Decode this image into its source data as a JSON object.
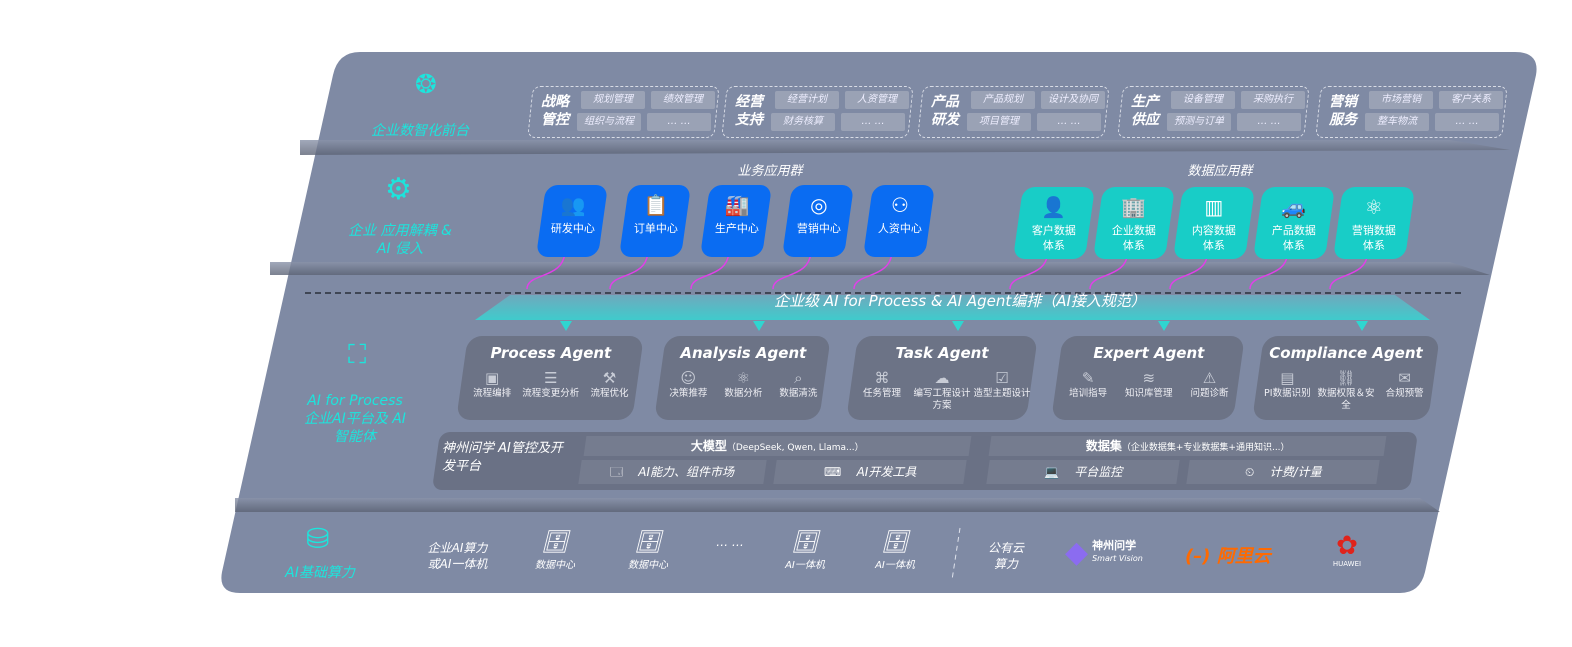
{
  "front": {
    "label": "企业数智化前台",
    "icon": "brain-icon",
    "groups": [
      {
        "title": "战略管控",
        "items": [
          "规划管理",
          "绩效管理",
          "组织与流程",
          "… …"
        ]
      },
      {
        "title": "经营支持",
        "items": [
          "经营计划",
          "人资管理",
          "财务核算",
          "… …"
        ]
      },
      {
        "title": "产品研发",
        "items": [
          "产品规划",
          "设计及协同",
          "项目管理",
          "… …"
        ]
      },
      {
        "title": "生产供应",
        "items": [
          "设备管理",
          "采购执行",
          "预测与订单",
          "… …"
        ]
      },
      {
        "title": "营销服务",
        "items": [
          "市场营销",
          "客户关系",
          "整车物流",
          "… …"
        ]
      }
    ]
  },
  "apps": {
    "label": "企业 应用解耦 & AI 侵入",
    "icon": "network-node-icon",
    "business_title": "业务应用群",
    "business": [
      {
        "label": "研发中心",
        "icon": "users-icon"
      },
      {
        "label": "订单中心",
        "icon": "clipboard-icon"
      },
      {
        "label": "生产中心",
        "icon": "factory-icon"
      },
      {
        "label": "营销中心",
        "icon": "target-icon"
      },
      {
        "label": "人资中心",
        "icon": "person-icon"
      }
    ],
    "data_title": "数据应用群",
    "data": [
      {
        "label": "客户数据体系",
        "icon": "user-icon"
      },
      {
        "label": "企业数据体系",
        "icon": "building-icon"
      },
      {
        "label": "内容数据体系",
        "icon": "books-icon"
      },
      {
        "label": "产品数据体系",
        "icon": "car-icon"
      },
      {
        "label": "营销数据体系",
        "icon": "atom-icon"
      }
    ],
    "colors": {
      "business": "#0a6cf2",
      "data": "#18cdc7",
      "connector": "#e040e8"
    }
  },
  "banner": "企业级 AI for Process & AI Agent编排（AI接入规范）",
  "platform": {
    "label": "AI for Process 企业AI平台及 AI智能体",
    "icon": "face-scan-icon",
    "agents": [
      {
        "title": "Process Agent",
        "items": [
          "流程编排",
          "流程变更分析",
          "流程优化"
        ]
      },
      {
        "title": "Analysis Agent",
        "items": [
          "决策推荐",
          "数据分析",
          "数据清洗"
        ]
      },
      {
        "title": "Task Agent",
        "items": [
          "任务管理",
          "编写工程设计方案",
          "造型主题设计"
        ]
      },
      {
        "title": "Expert Agent",
        "items": [
          "培训指导",
          "知识库管理",
          "问题诊断"
        ]
      },
      {
        "title": "Compliance Agent",
        "items": [
          "PI数据识别",
          "数据权限＆安全",
          "合规预警"
        ]
      }
    ],
    "dev": {
      "title": "神州问学 AI管控及开发平台",
      "models": "大模型",
      "models_note": "（DeepSeek, Qwen, Llama...）",
      "datasets": "数据集",
      "datasets_note": "（企业数据集+专业数据集+通用知识...）",
      "market": "AI能力、组件市场",
      "tools": "AI开发工具",
      "monitor": "平台监控",
      "billing": "计费/计量"
    }
  },
  "infra": {
    "label": "AI基础算力",
    "icon": "database-icon",
    "enterprise": "企业AI算力 或AI一体机",
    "items": [
      "数据中心",
      "数据中心",
      "AI一体机",
      "AI一体机"
    ],
    "ellipsis": "… …",
    "cloud": "公有云 算力",
    "vendors": [
      {
        "name": "神州问学",
        "sub": "Smart Vision"
      },
      {
        "name": "阿里云",
        "color": "#ff6a00"
      },
      {
        "name": "HUAWEI",
        "color": "#e0231b"
      }
    ]
  }
}
